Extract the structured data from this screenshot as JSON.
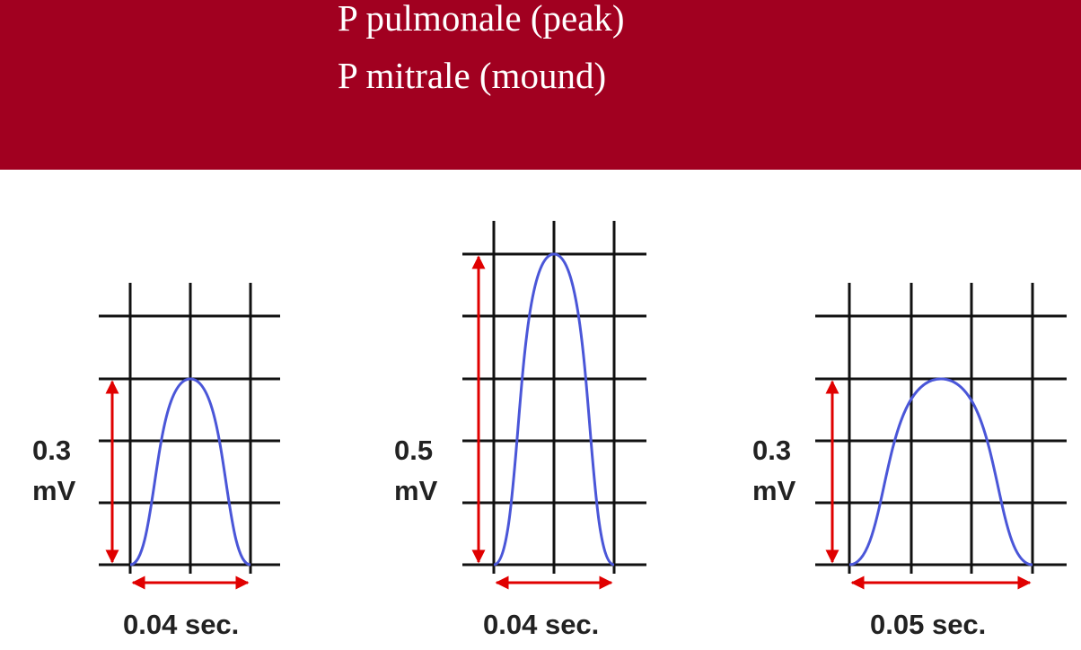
{
  "header": {
    "line1": "P pulmonale (peak)",
    "line2": "P mitrale (mound)"
  },
  "colors": {
    "header_bg": "#a10020",
    "grid": "#111111",
    "wave": "#4a56d8",
    "arrow": "#e00000"
  },
  "panels": [
    {
      "amp_value": "0.3",
      "amp_unit": "mV",
      "duration": "0.04 sec.",
      "amplitude_mv": 0.3,
      "duration_sec": 0.04,
      "shape": "normal"
    },
    {
      "amp_value": "0.5",
      "amp_unit": "mV",
      "duration": "0.04 sec.",
      "amplitude_mv": 0.5,
      "duration_sec": 0.04,
      "shape": "peaked"
    },
    {
      "amp_value": "0.3",
      "amp_unit": "mV",
      "duration": "0.05 sec.",
      "amplitude_mv": 0.3,
      "duration_sec": 0.05,
      "shape": "mound"
    }
  ]
}
